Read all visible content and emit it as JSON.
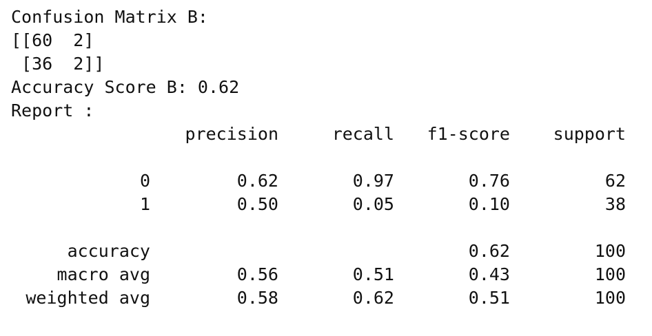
{
  "title": "Confusion Matrix B:",
  "matrix": {
    "row_1": "[[60  2]",
    "row_2": " [36  2]]"
  },
  "accuracy_line": "Accuracy Score B: 0.62",
  "report_label": "Report :",
  "report": {
    "headers": [
      "precision",
      "recall",
      "f1-score",
      "support"
    ],
    "rows": [
      {
        "label": "0",
        "precision": "0.62",
        "recall": "0.97",
        "f1": "0.76",
        "support": "62"
      },
      {
        "label": "1",
        "precision": "0.50",
        "recall": "0.05",
        "f1": "0.10",
        "support": "38"
      },
      {
        "label": "accuracy",
        "precision": "",
        "recall": "",
        "f1": "0.62",
        "support": "100"
      },
      {
        "label": "macro avg",
        "precision": "0.56",
        "recall": "0.51",
        "f1": "0.43",
        "support": "100"
      },
      {
        "label": "weighted avg",
        "precision": "0.58",
        "recall": "0.62",
        "f1": "0.51",
        "support": "100"
      }
    ]
  }
}
